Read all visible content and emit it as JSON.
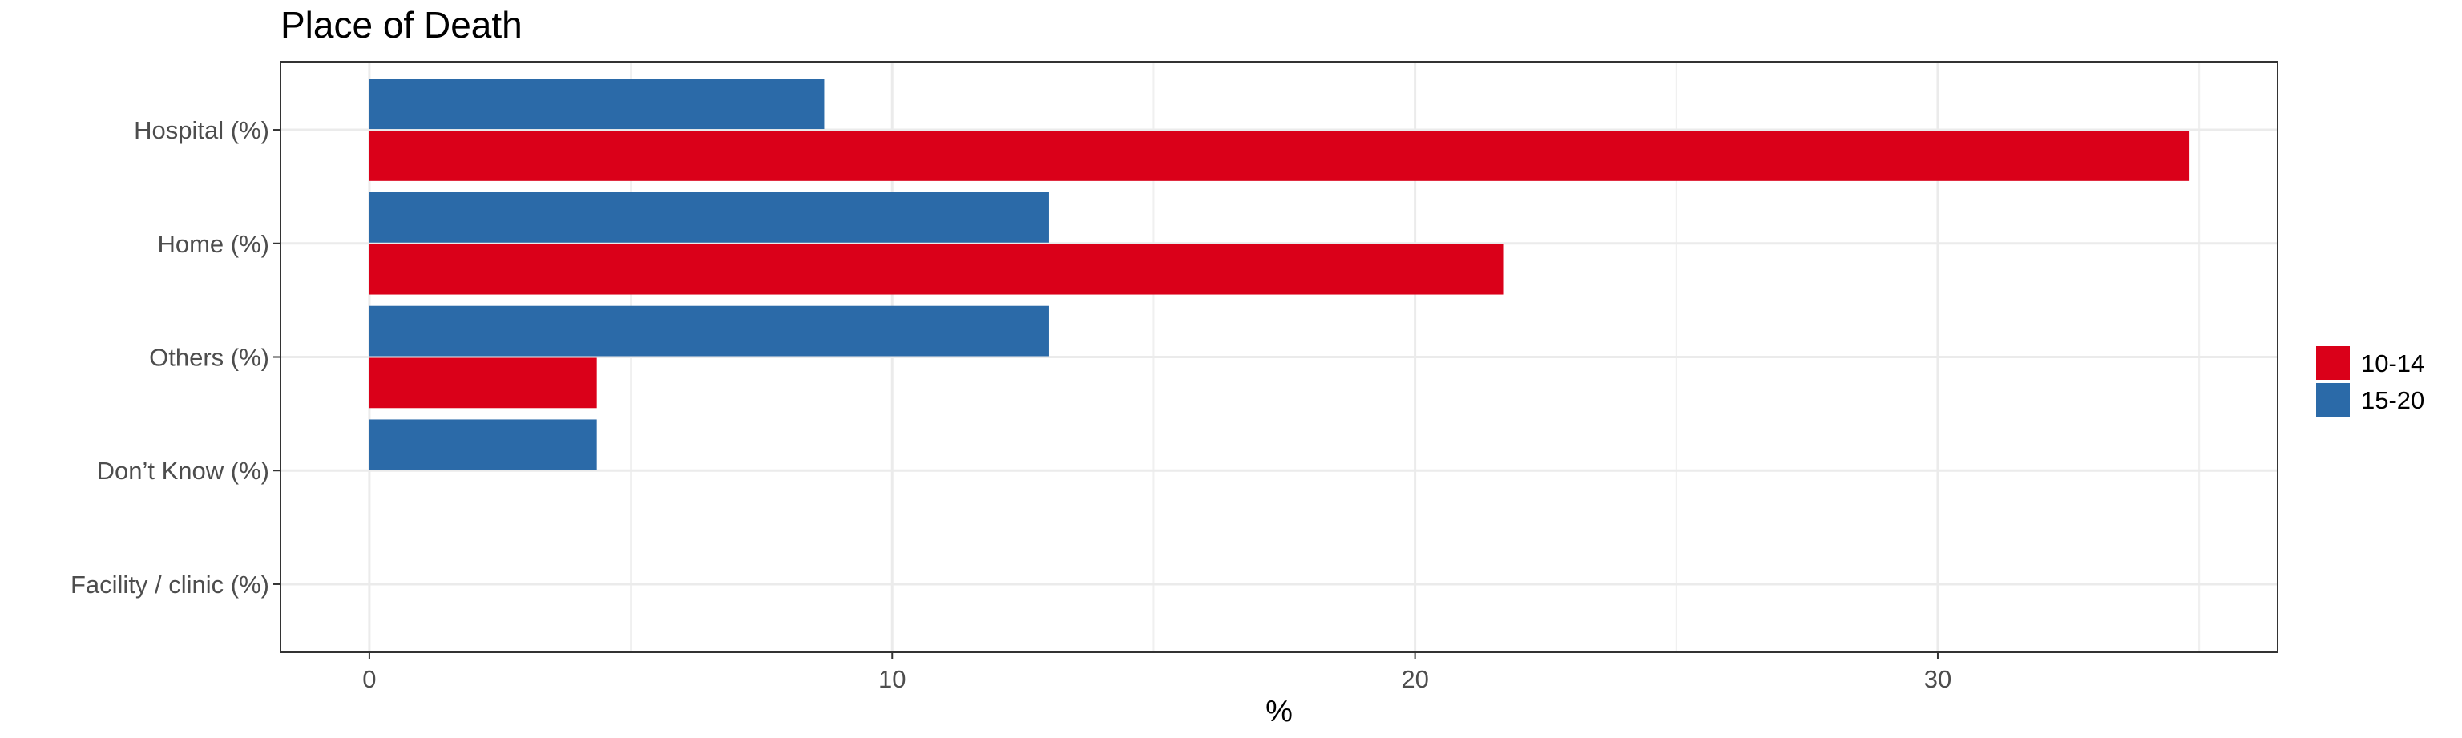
{
  "chart_data": {
    "type": "bar",
    "orientation": "horizontal",
    "title": "Place of Death",
    "xlabel": "%",
    "ylabel": "",
    "categories": [
      "Hospital (%)",
      "Home (%)",
      "Others (%)",
      "Don’t Know (%)",
      "Facility / clinic (%)"
    ],
    "series": [
      {
        "name": "10-14",
        "color": "#DA0019",
        "values": [
          34.8,
          21.7,
          4.35,
          0,
          0
        ]
      },
      {
        "name": "15-20",
        "color": "#2B6AA8",
        "values": [
          8.7,
          13.0,
          13.0,
          4.35,
          0
        ]
      }
    ],
    "xlim": [
      -1.7,
      36.5
    ],
    "xticks": [
      0,
      10,
      20,
      30
    ],
    "grid": true,
    "legend_position": "right"
  }
}
